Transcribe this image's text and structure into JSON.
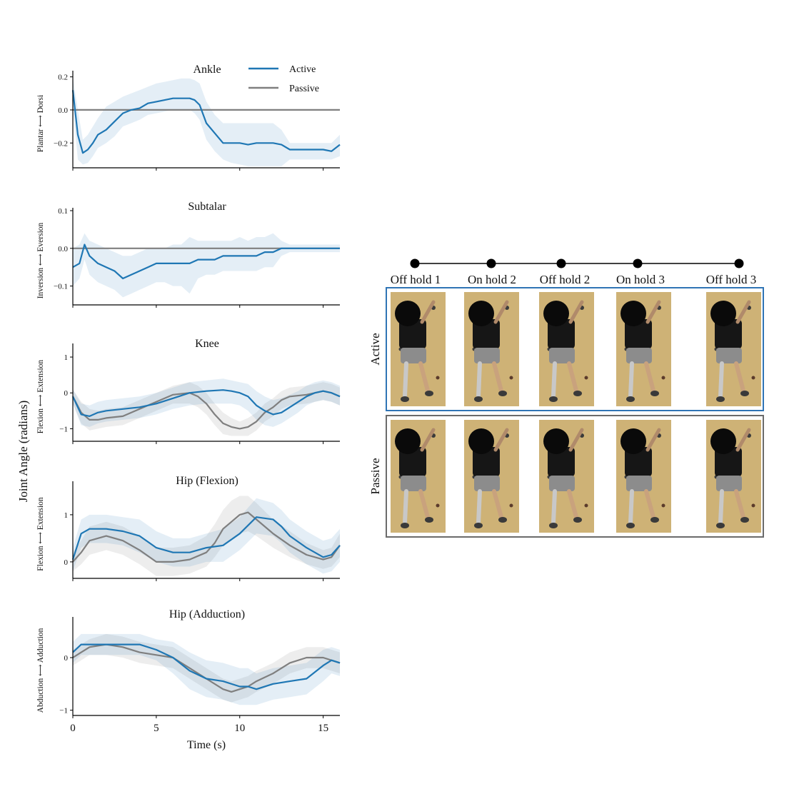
{
  "chart_data": [
    {
      "type": "line",
      "title": "Ankle",
      "ylabel": "Plantar ⟷ Dorsi",
      "xlim": [
        0,
        16
      ],
      "ylim": [
        -0.35,
        0.22
      ],
      "yticks": [
        "0.2",
        "0.0",
        "−0.2"
      ],
      "ytick_values": [
        0.2,
        0.0,
        -0.2
      ],
      "legend": {
        "position": "top-right",
        "entries": [
          "Active",
          "Passive"
        ]
      },
      "series": [
        {
          "name": "Active",
          "color": "#1f77b4",
          "x": [
            0,
            0.3,
            0.6,
            0.9,
            1.2,
            1.5,
            2,
            2.5,
            3,
            3.5,
            4,
            4.5,
            5,
            5.5,
            6,
            6.5,
            7,
            7.3,
            7.6,
            8,
            8.5,
            9,
            9.5,
            10,
            10.5,
            11,
            11.5,
            12,
            12.5,
            13,
            13.5,
            14,
            14.5,
            15,
            15.5,
            16
          ],
          "y": [
            0.12,
            -0.15,
            -0.26,
            -0.24,
            -0.2,
            -0.15,
            -0.12,
            -0.07,
            -0.02,
            0,
            0.01,
            0.04,
            0.05,
            0.06,
            0.07,
            0.07,
            0.07,
            0.06,
            0.03,
            -0.08,
            -0.14,
            -0.2,
            -0.2,
            -0.2,
            -0.21,
            -0.2,
            -0.2,
            -0.2,
            -0.21,
            -0.24,
            -0.24,
            -0.24,
            -0.24,
            -0.24,
            -0.25,
            -0.21
          ],
          "band_lo": [
            0.02,
            -0.3,
            -0.33,
            -0.32,
            -0.28,
            -0.23,
            -0.2,
            -0.16,
            -0.1,
            -0.08,
            -0.06,
            -0.03,
            -0.02,
            -0.01,
            0,
            0,
            0,
            -0.02,
            -0.06,
            -0.18,
            -0.25,
            -0.3,
            -0.32,
            -0.33,
            -0.34,
            -0.34,
            -0.34,
            -0.34,
            -0.34,
            -0.3,
            -0.3,
            -0.3,
            -0.3,
            -0.3,
            -0.3,
            -0.28
          ],
          "band_hi": [
            0.2,
            0,
            -0.18,
            -0.15,
            -0.1,
            -0.05,
            0.02,
            0.05,
            0.08,
            0.1,
            0.12,
            0.14,
            0.16,
            0.17,
            0.18,
            0.19,
            0.19,
            0.18,
            0.16,
            0.05,
            -0.03,
            -0.08,
            -0.08,
            -0.08,
            -0.08,
            -0.08,
            -0.08,
            -0.08,
            -0.12,
            -0.2,
            -0.2,
            -0.2,
            -0.2,
            -0.2,
            -0.2,
            -0.15
          ]
        },
        {
          "name": "Passive",
          "color": "#7f7f7f",
          "x": [
            0,
            16
          ],
          "y": [
            0,
            0
          ],
          "band_lo": [
            0,
            0
          ],
          "band_hi": [
            0,
            0
          ]
        }
      ]
    },
    {
      "type": "line",
      "title": "Subtalar",
      "ylabel": "Inversion ⟷ Eversion",
      "xlim": [
        0,
        16
      ],
      "ylim": [
        -0.15,
        0.1
      ],
      "yticks": [
        "0.1",
        "0.0",
        "−0.1"
      ],
      "ytick_values": [
        0.1,
        0.0,
        -0.1
      ],
      "series": [
        {
          "name": "Active",
          "color": "#1f77b4",
          "x": [
            0,
            0.4,
            0.7,
            1,
            1.5,
            2,
            2.5,
            3,
            3.5,
            4,
            4.5,
            5,
            5.5,
            6,
            6.5,
            7,
            7.5,
            8,
            8.5,
            9,
            9.5,
            10,
            10.5,
            11,
            11.5,
            12,
            12.5,
            13,
            14,
            15,
            16
          ],
          "y": [
            -0.05,
            -0.04,
            0.01,
            -0.02,
            -0.04,
            -0.05,
            -0.06,
            -0.08,
            -0.07,
            -0.06,
            -0.05,
            -0.04,
            -0.04,
            -0.04,
            -0.04,
            -0.04,
            -0.03,
            -0.03,
            -0.03,
            -0.02,
            -0.02,
            -0.02,
            -0.02,
            -0.02,
            -0.01,
            -0.01,
            0,
            0,
            0,
            0,
            0
          ],
          "band_lo": [
            -0.1,
            -0.08,
            -0.03,
            -0.07,
            -0.09,
            -0.1,
            -0.11,
            -0.13,
            -0.12,
            -0.11,
            -0.1,
            -0.09,
            -0.09,
            -0.1,
            -0.1,
            -0.12,
            -0.08,
            -0.07,
            -0.07,
            -0.06,
            -0.06,
            -0.06,
            -0.06,
            -0.06,
            -0.05,
            -0.05,
            -0.02,
            -0.01,
            -0.01,
            -0.01,
            -0.01
          ],
          "band_hi": [
            0,
            0.01,
            0.04,
            0.02,
            0.01,
            0,
            -0.01,
            -0.02,
            -0.02,
            -0.01,
            0,
            0,
            0,
            0.01,
            0.01,
            0.03,
            0.02,
            0.02,
            0.02,
            0.02,
            0.02,
            0.03,
            0.02,
            0.03,
            0.03,
            0.04,
            0.02,
            0.01,
            0.01,
            0.01,
            0.01
          ]
        },
        {
          "name": "Passive",
          "color": "#7f7f7f",
          "x": [
            0,
            16
          ],
          "y": [
            0,
            0
          ],
          "band_lo": [
            0,
            0
          ],
          "band_hi": [
            0,
            0
          ]
        }
      ]
    },
    {
      "type": "line",
      "title": "Knee",
      "ylabel": "Flexion ⟷ Extension",
      "xlim": [
        0,
        16
      ],
      "ylim": [
        -1.35,
        1.3
      ],
      "yticks": [
        "1",
        "0",
        "−1"
      ],
      "ytick_values": [
        1,
        0,
        -1
      ],
      "series": [
        {
          "name": "Active",
          "color": "#1f77b4",
          "x": [
            0,
            0.5,
            1,
            1.5,
            2,
            3,
            4,
            5,
            6,
            7,
            8,
            9,
            9.5,
            10,
            10.5,
            11,
            11.5,
            12,
            12.5,
            13,
            13.5,
            14,
            14.5,
            15,
            15.5,
            16
          ],
          "y": [
            -0.1,
            -0.6,
            -0.65,
            -0.55,
            -0.5,
            -0.45,
            -0.4,
            -0.3,
            -0.15,
            0,
            0.05,
            0.08,
            0.05,
            0,
            -0.1,
            -0.35,
            -0.5,
            -0.6,
            -0.55,
            -0.4,
            -0.25,
            -0.1,
            0,
            0.05,
            0,
            -0.1
          ],
          "band_lo": [
            -0.3,
            -0.9,
            -0.95,
            -0.85,
            -0.8,
            -0.75,
            -0.7,
            -0.6,
            -0.45,
            -0.35,
            -0.3,
            -0.3,
            -0.3,
            -0.35,
            -0.5,
            -0.75,
            -0.9,
            -0.95,
            -0.85,
            -0.7,
            -0.55,
            -0.35,
            -0.25,
            -0.2,
            -0.25,
            -0.35
          ],
          "band_hi": [
            0.1,
            -0.3,
            -0.35,
            -0.25,
            -0.2,
            -0.15,
            -0.1,
            0,
            0.15,
            0.3,
            0.35,
            0.4,
            0.35,
            0.3,
            0.25,
            0.05,
            -0.1,
            -0.2,
            -0.15,
            -0.05,
            0.05,
            0.2,
            0.3,
            0.35,
            0.3,
            0.2
          ]
        },
        {
          "name": "Passive",
          "color": "#7f7f7f",
          "x": [
            0,
            0.5,
            1,
            1.5,
            2,
            3,
            4,
            5,
            6,
            7,
            7.5,
            8,
            8.5,
            9,
            9.5,
            10,
            10.5,
            11,
            11.5,
            12,
            12.5,
            13,
            14,
            15,
            15.5,
            16
          ],
          "y": [
            -0.1,
            -0.55,
            -0.75,
            -0.75,
            -0.7,
            -0.65,
            -0.45,
            -0.25,
            -0.05,
            0,
            -0.1,
            -0.3,
            -0.6,
            -0.85,
            -0.95,
            -1,
            -0.95,
            -0.8,
            -0.55,
            -0.4,
            -0.2,
            -0.1,
            -0.05,
            0.05,
            0,
            -0.1
          ],
          "band_lo": [
            -0.3,
            -0.85,
            -1.05,
            -1,
            -0.95,
            -0.9,
            -0.7,
            -0.5,
            -0.3,
            -0.3,
            -0.4,
            -0.6,
            -0.9,
            -1.15,
            -1.2,
            -1.2,
            -1.2,
            -1.05,
            -0.8,
            -0.65,
            -0.45,
            -0.35,
            -0.3,
            -0.2,
            -0.25,
            -0.35
          ],
          "band_hi": [
            0.1,
            -0.25,
            -0.45,
            -0.5,
            -0.45,
            -0.4,
            -0.2,
            0,
            0.2,
            0.3,
            0.2,
            0,
            -0.3,
            -0.55,
            -0.7,
            -0.8,
            -0.7,
            -0.55,
            -0.3,
            -0.15,
            0.05,
            0.15,
            0.2,
            0.3,
            0.25,
            0.15
          ]
        }
      ]
    },
    {
      "type": "line",
      "title": "Hip (Flexion)",
      "ylabel": "Flexion ⟷ Extension",
      "xlim": [
        0,
        16
      ],
      "ylim": [
        -0.35,
        1.65
      ],
      "yticks": [
        "1",
        "0"
      ],
      "ytick_values": [
        1,
        0
      ],
      "series": [
        {
          "name": "Active",
          "color": "#1f77b4",
          "x": [
            0,
            0.5,
            1,
            2,
            3,
            4,
            5,
            6,
            7,
            8,
            9,
            10,
            11,
            12,
            12.5,
            13,
            14,
            15,
            15.5,
            16
          ],
          "y": [
            0.05,
            0.6,
            0.7,
            0.7,
            0.65,
            0.55,
            0.3,
            0.2,
            0.2,
            0.3,
            0.35,
            0.6,
            0.95,
            0.9,
            0.75,
            0.55,
            0.3,
            0.1,
            0.15,
            0.35
          ],
          "band_lo": [
            -0.2,
            0.3,
            0.4,
            0.4,
            0.35,
            0.2,
            0,
            -0.1,
            -0.1,
            0,
            0,
            0.25,
            0.6,
            0.55,
            0.4,
            0.2,
            -0.05,
            -0.25,
            -0.2,
            0
          ],
          "band_hi": [
            0.3,
            0.9,
            1,
            1,
            0.95,
            0.9,
            0.65,
            0.5,
            0.5,
            0.6,
            0.7,
            0.95,
            1.35,
            1.25,
            1.1,
            0.9,
            0.65,
            0.45,
            0.5,
            0.7
          ]
        },
        {
          "name": "Passive",
          "color": "#7f7f7f",
          "x": [
            0,
            0.5,
            1,
            2,
            3,
            4,
            5,
            6,
            7,
            8,
            8.5,
            9,
            9.5,
            10,
            10.5,
            11,
            12,
            13,
            14,
            15,
            15.5,
            16
          ],
          "y": [
            0,
            0.2,
            0.45,
            0.55,
            0.45,
            0.25,
            0,
            0,
            0.05,
            0.2,
            0.4,
            0.7,
            0.85,
            1,
            1.05,
            0.9,
            0.6,
            0.35,
            0.15,
            0.05,
            0.1,
            0.35
          ],
          "band_lo": [
            -0.2,
            -0.05,
            0.15,
            0.25,
            0.15,
            -0.05,
            -0.3,
            -0.3,
            -0.25,
            -0.1,
            0.1,
            0.35,
            0.5,
            0.6,
            0.65,
            0.55,
            0.3,
            0.1,
            -0.05,
            -0.15,
            -0.1,
            0.1
          ],
          "band_hi": [
            0.2,
            0.45,
            0.75,
            0.85,
            0.75,
            0.55,
            0.3,
            0.3,
            0.35,
            0.55,
            0.8,
            1.1,
            1.3,
            1.4,
            1.4,
            1.25,
            0.9,
            0.65,
            0.4,
            0.25,
            0.3,
            0.6
          ]
        }
      ]
    },
    {
      "type": "line",
      "title": "Hip (Adduction)",
      "ylabel": "Abduction ⟷ Adduction",
      "xlabel": "Time (s)",
      "xlim": [
        0,
        16
      ],
      "ylim": [
        -1.1,
        0.72
      ],
      "xticks": [
        "0",
        "5",
        "10",
        "15"
      ],
      "xtick_values": [
        0,
        5,
        10,
        15
      ],
      "yticks": [
        "0",
        "−1"
      ],
      "ytick_values": [
        0,
        -1
      ],
      "series": [
        {
          "name": "Active",
          "color": "#1f77b4",
          "x": [
            0,
            0.5,
            1,
            2,
            3,
            4,
            5,
            6,
            7,
            8,
            9,
            10,
            10.5,
            11,
            12,
            13,
            14,
            15,
            15.5,
            16
          ],
          "y": [
            0.1,
            0.25,
            0.25,
            0.25,
            0.25,
            0.25,
            0.15,
            0,
            -0.25,
            -0.4,
            -0.45,
            -0.55,
            -0.55,
            -0.6,
            -0.5,
            -0.45,
            -0.4,
            -0.15,
            -0.05,
            -0.1
          ],
          "band_lo": [
            -0.1,
            0.05,
            0.05,
            0.05,
            0.05,
            0.05,
            -0.05,
            -0.3,
            -0.6,
            -0.75,
            -0.8,
            -0.9,
            -0.9,
            -0.9,
            -0.8,
            -0.75,
            -0.7,
            -0.45,
            -0.3,
            -0.35
          ],
          "band_hi": [
            0.3,
            0.45,
            0.45,
            0.45,
            0.45,
            0.45,
            0.35,
            0.3,
            0.1,
            -0.05,
            -0.1,
            -0.2,
            -0.2,
            -0.3,
            -0.2,
            -0.15,
            -0.1,
            0.15,
            0.2,
            0.15
          ]
        },
        {
          "name": "Passive",
          "color": "#7f7f7f",
          "x": [
            0,
            0.5,
            1,
            2,
            3,
            4,
            5,
            6,
            7,
            8,
            9,
            9.5,
            10,
            10.5,
            11,
            12,
            13,
            14,
            15,
            16
          ],
          "y": [
            0,
            0.1,
            0.2,
            0.25,
            0.2,
            0.1,
            0.05,
            0,
            -0.2,
            -0.4,
            -0.6,
            -0.65,
            -0.6,
            -0.55,
            -0.45,
            -0.3,
            -0.1,
            0,
            0,
            -0.1
          ],
          "band_lo": [
            -0.15,
            -0.05,
            0.05,
            0.05,
            0,
            -0.1,
            -0.15,
            -0.2,
            -0.4,
            -0.6,
            -0.8,
            -0.85,
            -0.8,
            -0.75,
            -0.65,
            -0.5,
            -0.3,
            -0.2,
            -0.2,
            -0.3
          ],
          "band_hi": [
            0.15,
            0.25,
            0.35,
            0.45,
            0.4,
            0.3,
            0.25,
            0.2,
            0,
            -0.2,
            -0.4,
            -0.45,
            -0.4,
            -0.35,
            -0.25,
            -0.1,
            0.1,
            0.2,
            0.2,
            0.1
          ]
        }
      ]
    }
  ],
  "shared_ylabel": "Joint Angle (radians)",
  "timeline": {
    "labels": [
      "Off hold 1",
      "On hold 2",
      "Off hold 2",
      "On hold 3",
      "Off hold 3"
    ]
  },
  "photo_panels": [
    {
      "label": "Active",
      "border_color": "#2f74b5",
      "photos": 5
    },
    {
      "label": "Passive",
      "border_color": "#6b6b6b",
      "photos": 5
    }
  ]
}
